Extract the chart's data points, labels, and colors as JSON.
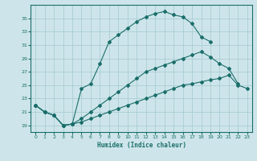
{
  "xlabel": "Humidex (Indice chaleur)",
  "background_color": "#cde5ea",
  "grid_color": "#aacdd4",
  "line_color": "#1a6e6a",
  "xlim": [
    -0.5,
    23.5
  ],
  "ylim": [
    18,
    37
  ],
  "yticks": [
    19,
    21,
    23,
    25,
    27,
    29,
    31,
    33,
    35
  ],
  "xticks": [
    0,
    1,
    2,
    3,
    4,
    5,
    6,
    7,
    8,
    9,
    10,
    11,
    12,
    13,
    14,
    15,
    16,
    17,
    18,
    19,
    20,
    21,
    22,
    23
  ],
  "line1_x": [
    0,
    1,
    2,
    3,
    4,
    5,
    6,
    7,
    8,
    9,
    10,
    11,
    12,
    13,
    14,
    15,
    16,
    17,
    18,
    19
  ],
  "line1_y": [
    22,
    21,
    20.5,
    19,
    19.2,
    24.5,
    25.2,
    28.2,
    31.5,
    32.5,
    33.5,
    34.5,
    35.2,
    35.7,
    36.0,
    35.5,
    35.2,
    34.2,
    32.2,
    31.5
  ],
  "line2_x": [
    0,
    1,
    2,
    3,
    4,
    5,
    6,
    7,
    8,
    9,
    10,
    11,
    12,
    13,
    14,
    15,
    16,
    17,
    18,
    19,
    20,
    21,
    22,
    23
  ],
  "line2_y": [
    22,
    21,
    20.5,
    19,
    19.2,
    19.5,
    20.0,
    20.5,
    21.0,
    21.5,
    22.0,
    22.5,
    23.0,
    23.5,
    24.0,
    24.5,
    25.0,
    25.2,
    25.5,
    25.8,
    26.0,
    26.5,
    25.0,
    24.5
  ],
  "line3_x": [
    0,
    1,
    2,
    3,
    4,
    5,
    6,
    7,
    8,
    9,
    10,
    11,
    12,
    13,
    14,
    15,
    16,
    17,
    18,
    19,
    20,
    21,
    22
  ],
  "line3_y": [
    22,
    21,
    20.5,
    19,
    19.2,
    20.0,
    21.0,
    22.0,
    23.0,
    24.0,
    25.0,
    26.0,
    27.0,
    27.5,
    28.0,
    28.5,
    29.0,
    29.5,
    30.0,
    29.2,
    28.2,
    27.5,
    25.2
  ]
}
